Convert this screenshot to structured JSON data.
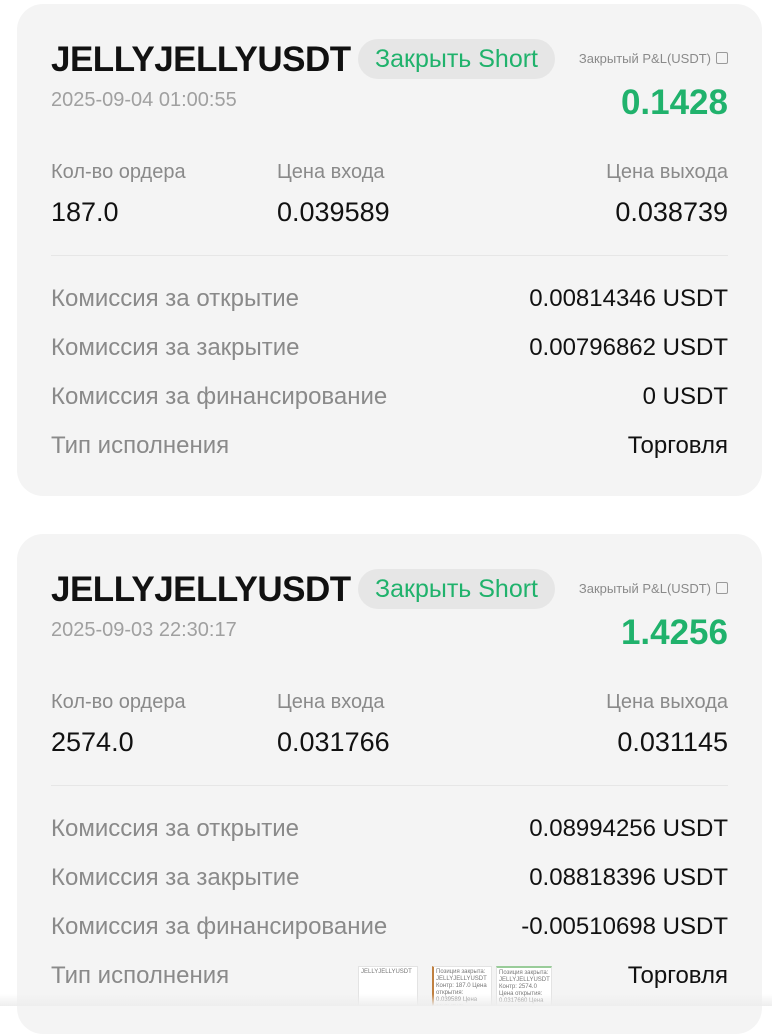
{
  "cards": [
    {
      "symbol": "JELLYJELLYUSDT",
      "badge": "Закрыть Short",
      "pnl_label": "Закрытый P&L(USDT)",
      "datetime": "2025-09-04 01:00:55",
      "pnl": "0.1428",
      "qty_label": "Кол-во ордера",
      "qty": "187.0",
      "entry_label": "Цена входа",
      "entry": "0.039589",
      "exit_label": "Цена выхода",
      "exit": "0.038739",
      "rows": [
        {
          "label": "Комиссия за открытие",
          "value": "0.00814346 USDT"
        },
        {
          "label": "Комиссия за закрытие",
          "value": "0.00796862 USDT"
        },
        {
          "label": "Комиссия за финансирование",
          "value": "0 USDT"
        },
        {
          "label": "Тип исполнения",
          "value": "Торговля"
        }
      ]
    },
    {
      "symbol": "JELLYJELLYUSDT",
      "badge": "Закрыть Short",
      "pnl_label": "Закрытый P&L(USDT)",
      "datetime": "2025-09-03 22:30:17",
      "pnl": "1.4256",
      "qty_label": "Кол-во ордера",
      "qty": "2574.0",
      "entry_label": "Цена входа",
      "entry": "0.031766",
      "exit_label": "Цена выхода",
      "exit": "0.031145",
      "rows": [
        {
          "label": "Комиссия за открытие",
          "value": "0.08994256 USDT"
        },
        {
          "label": "Комиссия за закрытие",
          "value": "0.08818396 USDT"
        },
        {
          "label": "Комиссия за финансирование",
          "value": "-0.00510698 USDT"
        },
        {
          "label": "Тип исполнения",
          "value": "Торговля"
        }
      ]
    }
  ],
  "thumbnails": [
    {
      "text": "JELLYJELLYUSDT"
    },
    {
      "text": "Позиция закрыта: JELLYJELLYUSDT Контр: 187.0 Цена открытия: 0.039589 Цена закрытия: 0.038739 PNL: 0.14 USDT Плечо: x5.0"
    },
    {
      "text": "Позиция закрыта: JELLYJELLYUSDT Контр: 2574.0 Цена открытия: 0.0317660 Цена закрытия: 0.031145 PNL: 1.43 USDT"
    }
  ],
  "colors": {
    "accent_green": "#20b26c",
    "card_bg": "#f4f4f4"
  }
}
